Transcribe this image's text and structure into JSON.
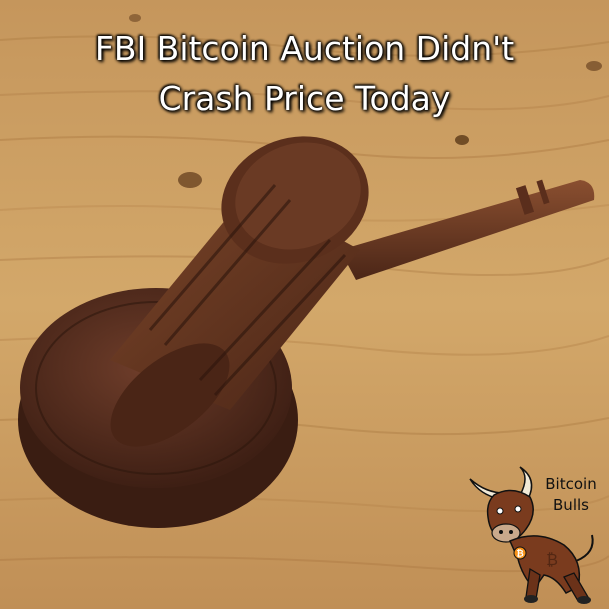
{
  "headline": {
    "line1": "FBI Bitcoin Auction Didn't",
    "line2": "Crash Price Today"
  },
  "logo": {
    "line1": "Bitcoin",
    "line2": "Bulls",
    "icon": "bull-mascot-icon"
  },
  "colors": {
    "headline_text": "#ffffff",
    "wood_table": "#c99a5a",
    "gavel_wood": "#6b3a24",
    "bull_body": "#7a3b1e",
    "bitcoin_orange": "#f7931a"
  }
}
